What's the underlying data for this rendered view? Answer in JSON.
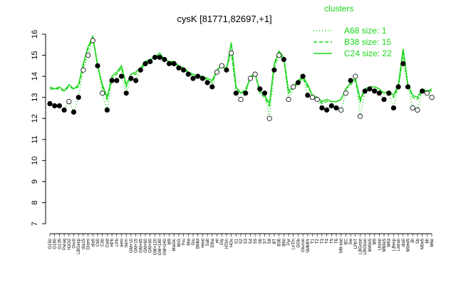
{
  "chart_data": {
    "type": "line",
    "title": "cysK [81771,82697,+1]",
    "ylim": [
      7,
      16
    ],
    "yticks": [
      7,
      8,
      9,
      10,
      11,
      12,
      13,
      14,
      15,
      16
    ],
    "series_color": "#19d619",
    "point_fill": "#000000",
    "point_open_fill": "#ffffff",
    "legend": {
      "title": "clusters",
      "position": "top-right",
      "entries": [
        {
          "label": "A68 size: 1",
          "style": "dotted"
        },
        {
          "label": "B38 size: 15",
          "style": "dashed"
        },
        {
          "label": "C24 size: 22",
          "style": "solid"
        }
      ]
    },
    "x_labels": [
      "G150",
      "G180",
      "G135",
      "Paraq",
      "H2O2",
      "Oxctl",
      "LBGexp",
      "dia15",
      "Diami",
      "dia5",
      "C60",
      "C30",
      "Cold",
      "HPh",
      "LPh",
      "aero",
      "ferm",
      "GM+10",
      "GM+15",
      "GM+45",
      "GM+60",
      "GM+90",
      "GM+120",
      "GM+180",
      "GM+240",
      "M9",
      "MaGlc",
      "M/G",
      "Fru",
      "Mal",
      "Glu",
      "BMM",
      "Heat",
      "Salt",
      "Etha",
      "nit",
      "Gly",
      "HTim",
      "HOs",
      "S1",
      "S2",
      "S3",
      "S4",
      "S5",
      "S6",
      "S7",
      "S8",
      "BT",
      "B36",
      "B60",
      "Pyr",
      "LoTm",
      "GGb",
      "Glucon",
      "SMMPr",
      "T1",
      "T2",
      "T3",
      "T4",
      "T5",
      "T6",
      "M9-stat",
      "BC",
      "Sw",
      "LPhT",
      "LBGstat",
      "LBGtran",
      "M40e5",
      "M9",
      "Lbstat",
      "M60e5",
      "M63",
      "LBexp",
      "Lbtran",
      "dia0",
      "M0e45",
      "BI",
      "Sb",
      "M0e5",
      "Mt",
      "M6e"
    ],
    "series": [
      {
        "name": "A68 size: 1",
        "style": "dotted",
        "values": [
          12.7,
          12.6,
          12.6,
          12.4,
          12.8,
          12.3,
          13.0,
          14.3,
          15.0,
          15.7,
          14.5,
          13.2,
          12.4,
          13.8,
          13.8,
          14.0,
          13.2,
          13.9,
          13.8,
          14.3,
          14.6,
          14.7,
          14.9,
          14.9,
          14.8,
          14.6,
          14.6,
          14.4,
          14.3,
          14.1,
          13.9,
          14.0,
          13.9,
          13.7,
          13.5,
          14.2,
          14.5,
          14.3,
          15.1,
          13.2,
          12.9,
          13.2,
          13.9,
          14.1,
          13.4,
          13.2,
          12.0,
          14.3,
          15.0,
          14.8,
          12.9,
          13.5,
          13.7,
          14.0,
          13.1,
          13.0,
          12.9,
          12.5,
          12.4,
          12.6,
          12.5,
          12.4,
          13.2,
          13.8,
          14.0,
          12.1,
          13.3,
          13.4,
          13.3,
          13.2,
          12.9,
          13.2,
          12.5,
          13.5,
          14.6,
          13.5,
          12.5,
          12.4,
          13.3,
          13.2,
          13.0
        ],
        "open": [
          0,
          0,
          0,
          0,
          1,
          0,
          0,
          1,
          1,
          1,
          0,
          1,
          0,
          0,
          0,
          0,
          0,
          0,
          0,
          0,
          0,
          0,
          0,
          0,
          0,
          0,
          0,
          0,
          0,
          0,
          0,
          0,
          0,
          0,
          0,
          1,
          1,
          0,
          1,
          0,
          1,
          0,
          1,
          1,
          0,
          0,
          1,
          0,
          1,
          0,
          1,
          1,
          0,
          0,
          0,
          1,
          1,
          0,
          0,
          0,
          0,
          1,
          1,
          0,
          1,
          1,
          0,
          0,
          0,
          0,
          0,
          0,
          0,
          0,
          0,
          0,
          1,
          1,
          0,
          1,
          1
        ]
      },
      {
        "name": "B38 size: 15",
        "style": "dashed",
        "values": [
          13.4,
          13.4,
          13.4,
          13.3,
          13.5,
          13.4,
          13.5,
          14.5,
          15.3,
          15.8,
          14.6,
          13.5,
          12.9,
          13.9,
          14.1,
          14.4,
          13.5,
          14.1,
          14.1,
          14.3,
          14.6,
          14.8,
          14.9,
          15.0,
          14.8,
          14.7,
          14.6,
          14.5,
          14.3,
          14.2,
          14.0,
          14.0,
          14.0,
          13.8,
          13.7,
          14.3,
          14.5,
          14.4,
          15.2,
          13.4,
          13.2,
          13.4,
          13.9,
          14.1,
          13.2,
          13.0,
          12.6,
          14.5,
          15.1,
          14.8,
          13.2,
          13.4,
          13.7,
          13.9,
          13.5,
          13.1,
          13.0,
          12.7,
          12.8,
          12.8,
          12.8,
          12.9,
          13.4,
          13.6,
          13.8,
          12.8,
          13.4,
          13.4,
          13.4,
          13.3,
          13.2,
          13.3,
          13.0,
          13.5,
          15.1,
          13.6,
          13.0,
          12.9,
          13.3,
          13.3,
          13.3
        ]
      },
      {
        "name": "C24 size: 22",
        "style": "solid",
        "values": [
          13.5,
          13.4,
          13.5,
          13.3,
          13.6,
          13.4,
          13.6,
          14.6,
          15.4,
          15.9,
          14.5,
          13.6,
          13.0,
          14.0,
          14.2,
          14.5,
          13.6,
          14.1,
          14.2,
          14.4,
          14.7,
          14.8,
          14.9,
          15.1,
          14.8,
          14.7,
          14.7,
          14.5,
          14.4,
          14.2,
          14.1,
          14.0,
          14.0,
          13.9,
          13.8,
          14.3,
          14.5,
          14.3,
          15.6,
          13.5,
          13.2,
          13.3,
          14.0,
          14.1,
          13.3,
          13.1,
          12.7,
          14.6,
          15.2,
          14.9,
          13.3,
          13.5,
          13.8,
          14.0,
          13.6,
          13.1,
          13.0,
          12.8,
          12.9,
          12.8,
          12.8,
          12.9,
          13.4,
          13.7,
          13.9,
          12.9,
          13.4,
          13.5,
          13.5,
          13.4,
          13.2,
          13.3,
          13.1,
          13.6,
          15.3,
          13.6,
          13.1,
          13.0,
          13.4,
          13.3,
          13.4
        ]
      }
    ]
  }
}
